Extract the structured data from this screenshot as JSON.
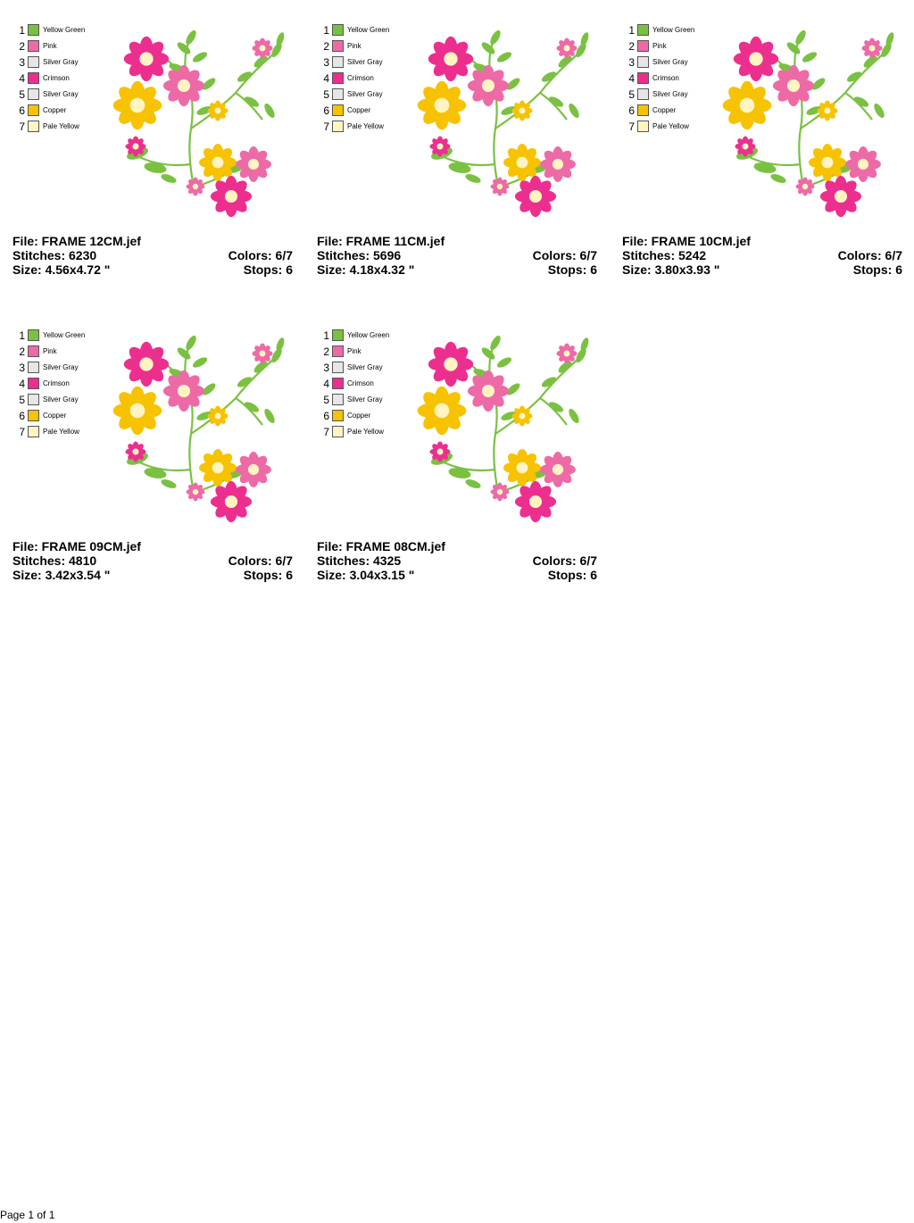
{
  "legend": [
    {
      "num": "1",
      "name": "Yellow Green",
      "color": "#7ac142"
    },
    {
      "num": "2",
      "name": "Pink",
      "color": "#ee6aa7"
    },
    {
      "num": "3",
      "name": "Silver Gray",
      "color": "#e6e6e6"
    },
    {
      "num": "4",
      "name": "Crimson",
      "color": "#ec2f8f"
    },
    {
      "num": "5",
      "name": "Silver Gray",
      "color": "#e6e6e6"
    },
    {
      "num": "6",
      "name": "Copper",
      "color": "#f7c200"
    },
    {
      "num": "7",
      "name": "Pale Yellow",
      "color": "#fff4c2"
    }
  ],
  "labels": {
    "file": "File: ",
    "stitches": "Stitches: ",
    "size": "Size: ",
    "colors": "Colors: ",
    "stops": "Stops: "
  },
  "designs": [
    {
      "file": "FRAME 12CM.jef",
      "stitches": "6230",
      "size": "4.56x4.72 \"",
      "colors": "6/7",
      "stops": "6"
    },
    {
      "file": "FRAME 11CM.jef",
      "stitches": "5696",
      "size": "4.18x4.32 \"",
      "colors": "6/7",
      "stops": "6"
    },
    {
      "file": "FRAME 10CM.jef",
      "stitches": "5242",
      "size": "3.80x3.93 \"",
      "colors": "6/7",
      "stops": "6"
    },
    {
      "file": "FRAME 09CM.jef",
      "stitches": "4810",
      "size": "3.42x3.54 \"",
      "colors": "6/7",
      "stops": "6"
    },
    {
      "file": "FRAME 08CM.jef",
      "stitches": "4325",
      "size": "3.04x3.15 \"",
      "colors": "6/7",
      "stops": "6"
    }
  ],
  "footer": "Page 1 of 1"
}
